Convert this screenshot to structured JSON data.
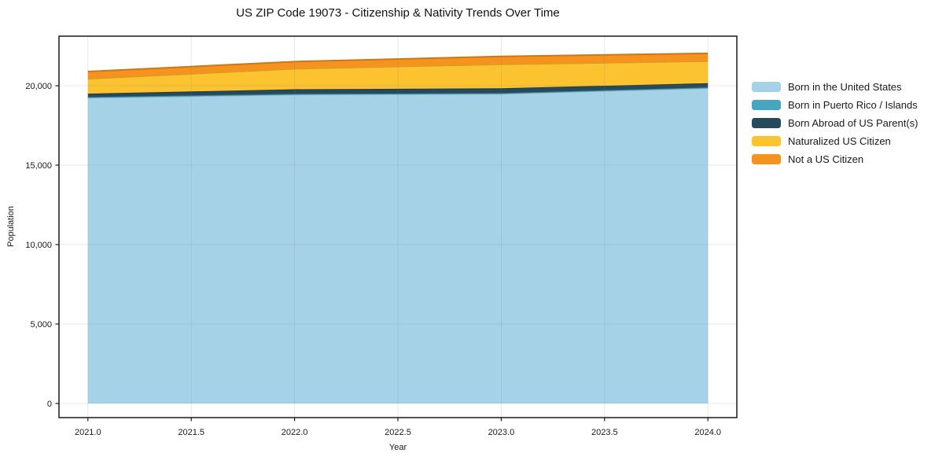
{
  "chart_data": {
    "type": "area",
    "stacked": true,
    "title": "US ZIP Code 19073 - Citizenship & Nativity Trends Over Time",
    "xlabel": "Year",
    "ylabel": "Population",
    "x": [
      2021.0,
      2022.0,
      2023.0,
      2024.0
    ],
    "series": [
      {
        "name": "Born in the United States",
        "color": "#A5D2E7",
        "values": [
          19250,
          19450,
          19500,
          19860
        ]
      },
      {
        "name": "Born in Puerto Rico / Islands",
        "color": "#46A5BF",
        "values": [
          40,
          40,
          40,
          40
        ]
      },
      {
        "name": "Born Abroad of US Parent(s)",
        "color": "#26495C",
        "values": [
          210,
          290,
          300,
          260
        ]
      },
      {
        "name": "Naturalized US Citizen",
        "color": "#FCC330",
        "values": [
          940,
          1290,
          1510,
          1390
        ]
      },
      {
        "name": "Not a US Citizen",
        "color": "#F6921E",
        "values": [
          450,
          450,
          495,
          490
        ]
      }
    ],
    "totals": [
      20890,
      21520,
      21845,
      22040
    ],
    "xlim": [
      2020.86,
      2024.14
    ],
    "ylim": [
      -890,
      23120
    ],
    "xticks": {
      "values": [
        2021.0,
        2021.5,
        2022.0,
        2022.5,
        2023.0,
        2023.5,
        2024.0
      ],
      "labels": [
        "2021.0",
        "2021.5",
        "2022.0",
        "2022.5",
        "2023.0",
        "2023.5",
        "2024.0"
      ]
    },
    "yticks": {
      "values": [
        0,
        5000,
        10000,
        15000,
        20000
      ],
      "labels": [
        "0",
        "5,000",
        "10,000",
        "15,000",
        "20,000"
      ]
    },
    "grid": true,
    "legend_position": "right-outside"
  },
  "colors": {
    "background": "#ffffff",
    "spine": "#1a1a1a",
    "grid_overlay": "rgba(130,130,130,0.18)",
    "tick_text": "#1a1a1a"
  }
}
